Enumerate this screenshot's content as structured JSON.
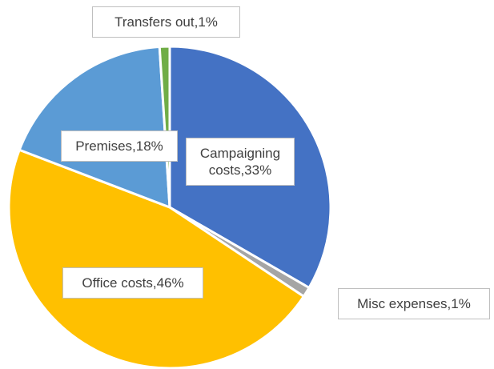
{
  "chart_data": {
    "type": "pie",
    "values": [
      33,
      1,
      46,
      18,
      1
    ],
    "value_labels": [
      "Campaigning costs,33%",
      "Misc expenses,1%",
      "Office costs,46%",
      "Premises,18%",
      "Transfers out,1%"
    ],
    "colors": [
      "#4472c4",
      "#a5a5a5",
      "#ffc000",
      "#5b9bd5",
      "#70ad47"
    ]
  }
}
